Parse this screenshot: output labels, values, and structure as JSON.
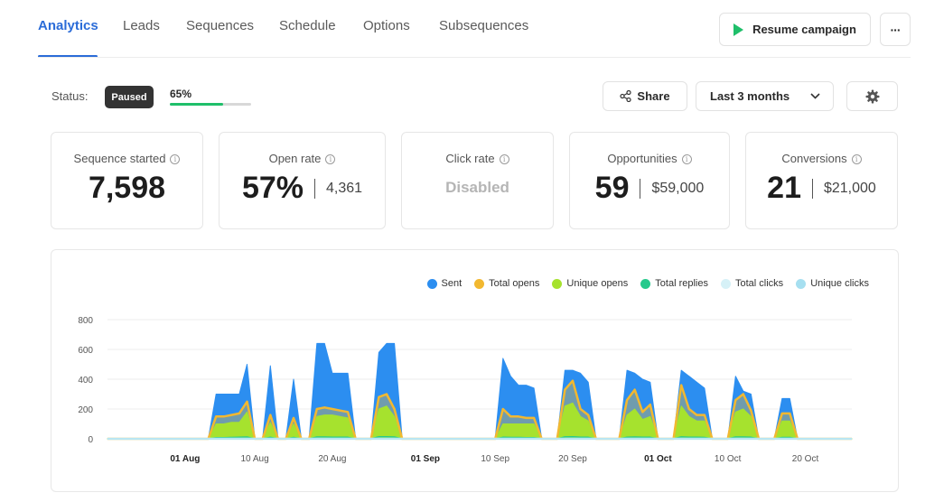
{
  "nav": {
    "tabs": [
      {
        "label": "Analytics",
        "active": true
      },
      {
        "label": "Leads"
      },
      {
        "label": "Sequences"
      },
      {
        "label": "Schedule"
      },
      {
        "label": "Options"
      },
      {
        "label": "Subsequences"
      }
    ],
    "resume_label": "Resume campaign",
    "more_label": "···"
  },
  "status": {
    "label": "Status:",
    "badge": "Paused",
    "progress_label": "65%",
    "progress_value": 0.65
  },
  "toolbar": {
    "share_label": "Share",
    "range_label": "Last 3 months"
  },
  "cards": {
    "sequence": {
      "title": "Sequence started",
      "value": "7,598"
    },
    "open_rate": {
      "title": "Open rate",
      "value": "57%",
      "sub": "4,361"
    },
    "click_rate": {
      "title": "Click rate",
      "value": "Disabled"
    },
    "opportunities": {
      "title": "Opportunities",
      "value": "59",
      "sub": "$59,000"
    },
    "conversions": {
      "title": "Conversions",
      "value": "21",
      "sub": "$21,000"
    }
  },
  "colors": {
    "accent": "#2b6cd8",
    "sent": "#2c8ef0",
    "total_opens": "#f2b830",
    "unique_opens": "#a6e22e",
    "total_replies": "#26c98c",
    "total_clicks": "#d6f1f7",
    "unique_clicks": "#a6dff0"
  },
  "chart_data": {
    "type": "area",
    "y_ticks": [
      "800",
      "600",
      "400",
      "200",
      "0"
    ],
    "ylim": [
      0,
      800
    ],
    "x_tick_labels": [
      {
        "label": "01 Aug",
        "bold": true
      },
      {
        "label": "10 Aug"
      },
      {
        "label": "20 Aug"
      },
      {
        "label": "01 Sep",
        "bold": true
      },
      {
        "label": "10 Sep"
      },
      {
        "label": "20 Sep"
      },
      {
        "label": "01 Oct",
        "bold": true
      },
      {
        "label": "10 Oct"
      },
      {
        "label": "20 Oct"
      }
    ],
    "legend": [
      {
        "name": "Sent",
        "color": "#2c8ef0"
      },
      {
        "name": "Total opens",
        "color": "#f2b830"
      },
      {
        "name": "Unique opens",
        "color": "#a6e22e"
      },
      {
        "name": "Total replies",
        "color": "#26c98c"
      },
      {
        "name": "Total clicks",
        "color": "#d6f1f7"
      },
      {
        "name": "Unique clicks",
        "color": "#a6dff0"
      }
    ],
    "day_start": "2024-07-22",
    "series": [
      {
        "name": "Sent",
        "values": [
          0,
          0,
          0,
          0,
          0,
          0,
          0,
          0,
          0,
          0,
          0,
          0,
          0,
          0,
          300,
          300,
          300,
          300,
          500,
          0,
          0,
          490,
          0,
          0,
          400,
          0,
          0,
          640,
          640,
          440,
          440,
          440,
          0,
          0,
          0,
          580,
          640,
          640,
          0,
          0,
          0,
          0,
          0,
          0,
          0,
          0,
          0,
          0,
          0,
          0,
          0,
          540,
          420,
          360,
          360,
          340,
          0,
          0,
          0,
          460,
          460,
          440,
          380,
          0,
          0,
          0,
          0,
          460,
          440,
          400,
          380,
          0,
          0,
          0,
          460,
          420,
          380,
          340,
          0,
          0,
          0,
          420,
          320,
          300,
          0,
          0,
          0,
          270,
          270,
          0,
          0,
          0,
          0,
          0,
          0,
          0,
          0
        ]
      },
      {
        "name": "Total opens",
        "values": [
          0,
          0,
          0,
          0,
          0,
          0,
          0,
          0,
          0,
          0,
          0,
          0,
          0,
          0,
          150,
          150,
          160,
          170,
          250,
          0,
          0,
          160,
          0,
          0,
          140,
          0,
          0,
          200,
          210,
          200,
          190,
          180,
          0,
          0,
          0,
          280,
          300,
          200,
          0,
          0,
          0,
          0,
          0,
          0,
          0,
          0,
          0,
          0,
          0,
          0,
          0,
          200,
          150,
          150,
          140,
          140,
          0,
          0,
          0,
          330,
          390,
          200,
          160,
          0,
          0,
          0,
          0,
          260,
          330,
          180,
          230,
          0,
          0,
          0,
          360,
          200,
          160,
          160,
          0,
          0,
          0,
          260,
          300,
          190,
          0,
          0,
          0,
          170,
          170,
          0,
          0,
          0,
          0,
          0,
          0,
          0,
          0
        ]
      },
      {
        "name": "Unique opens",
        "values": [
          0,
          0,
          0,
          0,
          0,
          0,
          0,
          0,
          0,
          0,
          0,
          0,
          0,
          0,
          100,
          100,
          110,
          110,
          180,
          0,
          0,
          110,
          0,
          0,
          100,
          0,
          0,
          150,
          160,
          160,
          150,
          140,
          0,
          0,
          0,
          200,
          220,
          150,
          0,
          0,
          0,
          0,
          0,
          0,
          0,
          0,
          0,
          0,
          0,
          0,
          0,
          100,
          100,
          100,
          100,
          100,
          0,
          0,
          0,
          220,
          240,
          150,
          120,
          0,
          0,
          0,
          0,
          160,
          200,
          130,
          150,
          0,
          0,
          0,
          220,
          150,
          120,
          120,
          0,
          0,
          0,
          180,
          200,
          150,
          0,
          0,
          0,
          120,
          120,
          0,
          0,
          0,
          0,
          0,
          0,
          0,
          0
        ]
      },
      {
        "name": "Total replies",
        "values": [
          0,
          0,
          0,
          0,
          0,
          0,
          0,
          0,
          0,
          0,
          0,
          0,
          0,
          0,
          8,
          8,
          9,
          10,
          12,
          0,
          0,
          10,
          0,
          0,
          9,
          0,
          0,
          12,
          12,
          11,
          11,
          10,
          0,
          0,
          0,
          14,
          14,
          12,
          0,
          0,
          0,
          0,
          0,
          0,
          0,
          0,
          0,
          0,
          0,
          0,
          0,
          10,
          9,
          9,
          8,
          8,
          0,
          0,
          0,
          13,
          14,
          11,
          10,
          0,
          0,
          0,
          0,
          11,
          12,
          10,
          10,
          0,
          0,
          0,
          13,
          11,
          10,
          9,
          0,
          0,
          0,
          12,
          12,
          10,
          0,
          0,
          0,
          9,
          9,
          0,
          0,
          0,
          0,
          0,
          0,
          0,
          0
        ]
      },
      {
        "name": "Total clicks",
        "values": [
          0,
          0,
          0,
          0,
          0,
          0,
          0,
          0,
          0,
          0,
          0,
          0,
          0,
          0,
          0,
          0,
          0,
          0,
          0,
          0,
          0,
          0,
          0,
          0,
          0,
          0,
          0,
          0,
          0,
          0,
          0,
          0,
          0,
          0,
          0,
          0,
          0,
          0,
          0,
          0,
          0,
          0,
          0,
          0,
          0,
          0,
          0,
          0,
          0,
          0,
          0,
          0,
          0,
          0,
          0,
          0,
          0,
          0,
          0,
          0,
          0,
          0,
          0,
          0,
          0,
          0,
          0,
          0,
          0,
          0,
          0,
          0,
          0,
          0,
          0,
          0,
          0,
          0,
          0,
          0,
          0,
          0,
          0,
          0,
          0,
          0,
          0,
          0,
          0,
          0,
          0,
          0,
          0,
          0,
          0,
          0,
          0
        ]
      },
      {
        "name": "Unique clicks",
        "values": [
          0,
          0,
          0,
          0,
          0,
          0,
          0,
          0,
          0,
          0,
          0,
          0,
          0,
          0,
          0,
          0,
          0,
          0,
          0,
          0,
          0,
          0,
          0,
          0,
          0,
          0,
          0,
          0,
          0,
          0,
          0,
          0,
          0,
          0,
          0,
          0,
          0,
          0,
          0,
          0,
          0,
          0,
          0,
          0,
          0,
          0,
          0,
          0,
          0,
          0,
          0,
          0,
          0,
          0,
          0,
          0,
          0,
          0,
          0,
          0,
          0,
          0,
          0,
          0,
          0,
          0,
          0,
          0,
          0,
          0,
          0,
          0,
          0,
          0,
          0,
          0,
          0,
          0,
          0,
          0,
          0,
          0,
          0,
          0,
          0,
          0,
          0,
          0,
          0,
          0,
          0,
          0,
          0,
          0,
          0,
          0,
          0
        ]
      }
    ]
  }
}
